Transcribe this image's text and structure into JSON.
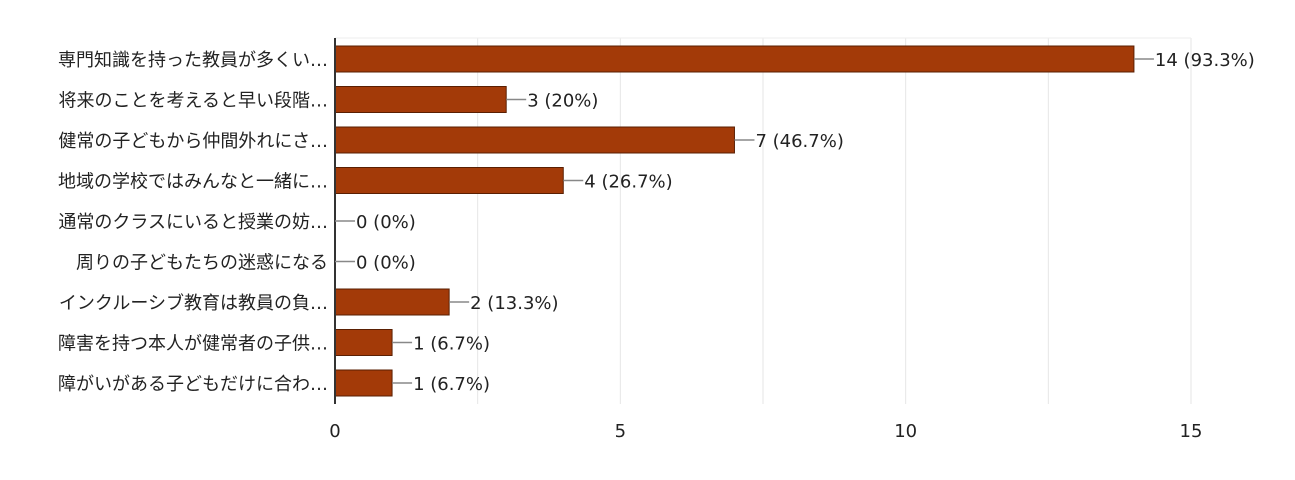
{
  "chart_data": {
    "type": "bar",
    "orientation": "horizontal",
    "categories": [
      "専門知識を持った教員が多くい…",
      "将来のことを考えると早い段階…",
      "健常の子どもから仲間外れにさ…",
      "地域の学校ではみんなと一緒に…",
      "通常のクラスにいると授業の妨…",
      "周りの子どもたちの迷惑になる",
      "インクルーシブ教育は教員の負…",
      "障害を持つ本人が健常者の子供…",
      "障がいがある子どもだけに合わ…"
    ],
    "values": [
      14,
      3,
      7,
      4,
      0,
      0,
      2,
      1,
      1
    ],
    "data_labels": [
      "14 (93.3%)",
      "3 (20%)",
      "7 (46.7%)",
      "4 (26.7%)",
      "0 (0%)",
      "0 (0%)",
      "2 (13.3%)",
      "1 (6.7%)",
      "1 (6.7%)"
    ],
    "x_ticks": [
      0,
      5,
      10,
      15
    ],
    "xlim": [
      0,
      15
    ],
    "grid": true,
    "bar_color": "#a33a08"
  }
}
